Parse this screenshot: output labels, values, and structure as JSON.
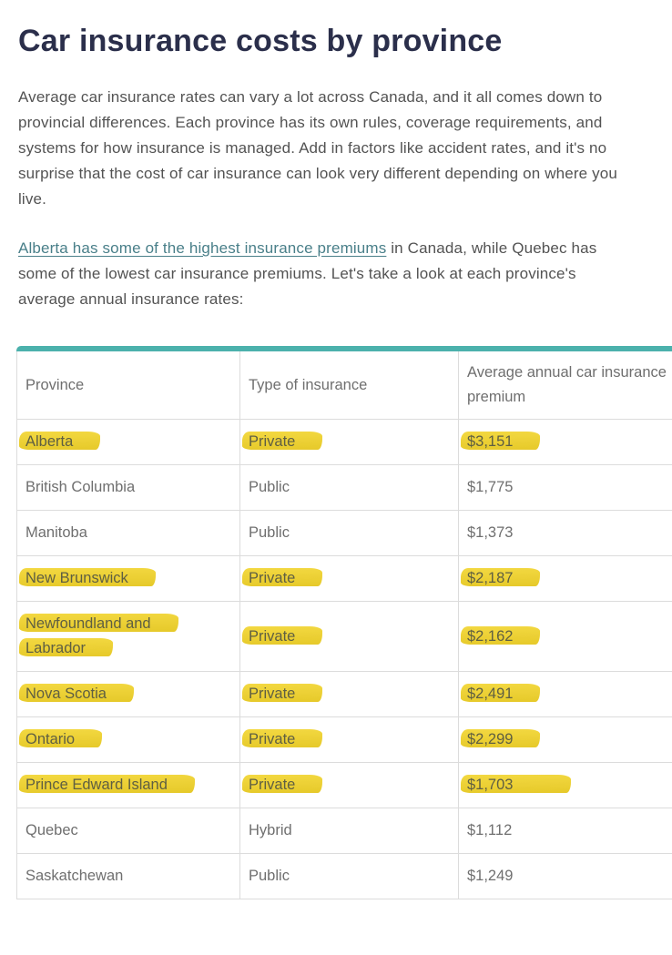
{
  "page": {
    "title": "Car insurance costs by province",
    "intro": "Average car insurance rates can vary a lot across Canada, and it all comes down to provincial differences. Each province has its own rules, coverage requirements, and systems for how insurance is managed. Add in factors like accident rates, and it's no surprise that the cost of car insurance can look very different depending on where you live.",
    "link_text": "Alberta has some of the highest insurance premiums",
    "link_tail": " in Canada, while Quebec has some of the lowest car insurance premiums. Let's take a look at each province's average annual insurance rates:"
  },
  "table": {
    "headers": [
      "Province",
      "Type of insurance",
      "Average annual car insurance premium"
    ],
    "rows": [
      {
        "province": "Alberta",
        "type": "Private",
        "premium": "$3,151",
        "highlighted": true
      },
      {
        "province": "British Columbia",
        "type": "Public",
        "premium": "$1,775",
        "highlighted": false
      },
      {
        "province": "Manitoba",
        "type": "Public",
        "premium": "$1,373",
        "highlighted": false
      },
      {
        "province": "New Brunswick",
        "type": "Private",
        "premium": "$2,187",
        "highlighted": true
      },
      {
        "province": "Newfoundland and Labrador",
        "type": "Private",
        "premium": "$2,162",
        "highlighted": true
      },
      {
        "province": "Nova Scotia",
        "type": "Private",
        "premium": "$2,491",
        "highlighted": true
      },
      {
        "province": "Ontario",
        "type": "Private",
        "premium": "$2,299",
        "highlighted": true
      },
      {
        "province": "Prince Edward Island",
        "type": "Private",
        "premium": "$1,703",
        "highlighted": true
      },
      {
        "province": "Quebec",
        "type": "Hybrid",
        "premium": "$1,112",
        "highlighted": false
      },
      {
        "province": "Saskatchewan",
        "type": "Public",
        "premium": "$1,249",
        "highlighted": false
      }
    ]
  },
  "colors": {
    "accent_teal": "#4BB1AC",
    "highlight_yellow": "#F2D42C",
    "title_navy": "#2B2F4B",
    "link_teal": "#497F89"
  }
}
